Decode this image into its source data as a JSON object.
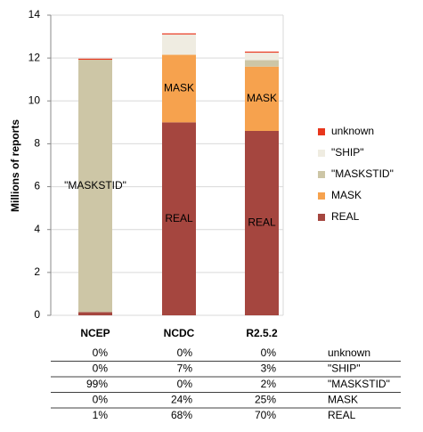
{
  "chart_data": {
    "type": "stacked_bar",
    "y_label": "Millions of reports",
    "categories": [
      "NCEP",
      "NCDC",
      "R2.5.2"
    ],
    "series": [
      {
        "name": "REAL",
        "color": "#a5463f",
        "values": [
          0.15,
          9.0,
          8.6
        ],
        "shares": [
          "1%",
          "68%",
          "70%"
        ]
      },
      {
        "name": "MASK",
        "color": "#f6a24e",
        "values": [
          0,
          3.15,
          3.0
        ],
        "shares": [
          "0%",
          "24%",
          "25%"
        ]
      },
      {
        "name": "\"MASKSTID\"",
        "color": "#cdc6a6",
        "values": [
          11.77,
          0,
          0.3
        ],
        "shares": [
          "99%",
          "0%",
          "2%"
        ]
      },
      {
        "name": "\"SHIP\"",
        "color": "#efece1",
        "values": [
          0,
          0.95,
          0.35
        ],
        "shares": [
          "0%",
          "7%",
          "3%"
        ]
      },
      {
        "name": "unknown",
        "color": "#e8361c",
        "values": [
          0.05,
          0.05,
          0.05
        ],
        "shares": [
          "0%",
          "0%",
          "0%"
        ]
      }
    ],
    "ylim": [
      0,
      14
    ],
    "yticks": [
      0,
      2,
      4,
      6,
      8,
      10,
      12,
      14
    ],
    "grid": true,
    "segment_labels": true,
    "legend": "right"
  }
}
